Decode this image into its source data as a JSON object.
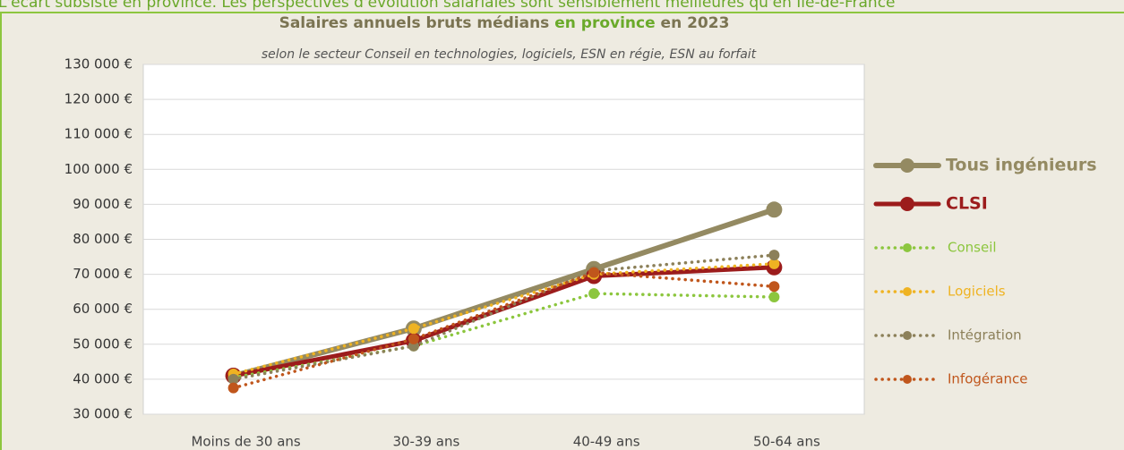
{
  "header_text": "L'écart subsiste en province. Les perspectives d'évolution salariales sont sensiblement meilleures qu'en Ile-de-France",
  "chart_data": {
    "type": "line",
    "title": [
      "Salaires annuels bruts médians",
      "en province",
      "en 2023"
    ],
    "subtitle": "selon le secteur Conseil en technologies, logiciels, ESN en régie, ESN au forfait",
    "categories": [
      "Moins de 30 ans",
      "30-39 ans",
      "40-49 ans",
      "50-64 ans"
    ],
    "ylim": [
      30000,
      130000
    ],
    "yticks": [
      {
        "value": 30000,
        "label": "30 000 €"
      },
      {
        "value": 40000,
        "label": "40 000 €"
      },
      {
        "value": 50000,
        "label": "50 000 €"
      },
      {
        "value": 60000,
        "label": "60 000 €"
      },
      {
        "value": 70000,
        "label": "70 000 €"
      },
      {
        "value": 80000,
        "label": "80 000 €"
      },
      {
        "value": 90000,
        "label": "90 000 €"
      },
      {
        "value": 100000,
        "label": "100 000 €"
      },
      {
        "value": 110000,
        "label": "110 000 €"
      },
      {
        "value": 120000,
        "label": "120 000 €"
      },
      {
        "value": 130000,
        "label": "130 000 €"
      }
    ],
    "grid": true,
    "legend": "right",
    "series": [
      {
        "name": "Tous ingénieurs",
        "color": "#948a62",
        "style": "solid",
        "values": [
          41000,
          54500,
          71500,
          88500
        ]
      },
      {
        "name": "CLSI",
        "color": "#9c1c1c",
        "style": "solid",
        "values": [
          41000,
          51000,
          69500,
          72000
        ]
      },
      {
        "name": "Conseil",
        "color": "#8cc63e",
        "style": "dotted",
        "values": [
          40500,
          49500,
          64500,
          63500
        ]
      },
      {
        "name": "Logiciels",
        "color": "#efb322",
        "style": "dotted",
        "values": [
          41500,
          54500,
          70000,
          73000
        ]
      },
      {
        "name": "Intégration",
        "color": "#8c8059",
        "style": "dotted",
        "values": [
          40000,
          49500,
          71000,
          75500
        ]
      },
      {
        "name": "Infogérance",
        "color": "#c0561c",
        "style": "dotted",
        "values": [
          37500,
          51500,
          70500,
          66500
        ]
      }
    ]
  }
}
